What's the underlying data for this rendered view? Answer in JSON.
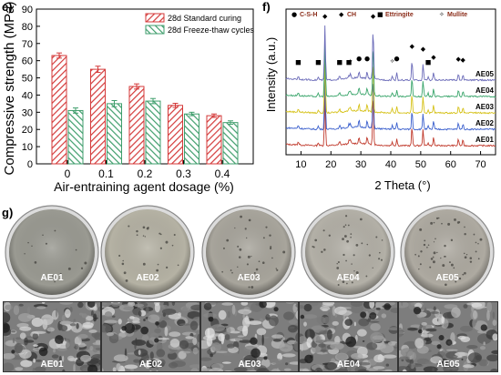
{
  "panels": {
    "e": "e)",
    "f": "f)",
    "g": "g)"
  },
  "colors": {
    "standard": "#d43a3a",
    "freeze": "#3f9e6c"
  },
  "chart_data": [
    {
      "type": "bar",
      "panel": "e",
      "categories": [
        "0",
        "0.1",
        "0.2",
        "0.3",
        "0.4"
      ],
      "series": [
        {
          "name": "28d Standard curing",
          "values": [
            63,
            55,
            45,
            34,
            28
          ],
          "errors": [
            1.5,
            1.8,
            1.5,
            1.2,
            1.0
          ]
        },
        {
          "name": "28d Freeze-thaw cycles",
          "values": [
            31,
            35,
            36.5,
            29,
            24
          ],
          "errors": [
            1.5,
            1.8,
            1.5,
            1.0,
            1.0
          ]
        }
      ],
      "xlabel": "Air-entraining agent dosage (%)",
      "ylabel": "Compressive strength (MPa)",
      "ylim": [
        0,
        90
      ],
      "yticks": [
        "0",
        "10",
        "20",
        "30",
        "40",
        "50",
        "60",
        "70",
        "80",
        "90"
      ],
      "legend": "top-right"
    },
    {
      "type": "line",
      "panel": "f",
      "xlabel": "2 Theta (°)",
      "ylabel": "Intensity (a.u.)",
      "xlim": [
        5,
        75
      ],
      "xticks": [
        "10",
        "20",
        "30",
        "40",
        "50",
        "60",
        "70"
      ],
      "series": [
        {
          "name": "AE01",
          "color": "#c0392b"
        },
        {
          "name": "AE02",
          "color": "#3a5fcd"
        },
        {
          "name": "AE03",
          "color": "#d6c21a"
        },
        {
          "name": "AE04",
          "color": "#3aa56b"
        },
        {
          "name": "AE05",
          "color": "#6a6ab8"
        }
      ],
      "peaks": [
        {
          "x": 18.0,
          "phase": "CH"
        },
        {
          "x": 34.1,
          "phase": "CH"
        },
        {
          "x": 47.1,
          "phase": "CH"
        },
        {
          "x": 50.8,
          "phase": "CH"
        },
        {
          "x": 54.3,
          "phase": "CH"
        },
        {
          "x": 62.6,
          "phase": "CH"
        },
        {
          "x": 64.1,
          "phase": "CH"
        },
        {
          "x": 29.4,
          "phase": "C-S-H"
        },
        {
          "x": 32.1,
          "phase": "C-S-H"
        },
        {
          "x": 42.0,
          "phase": "C-S-H"
        },
        {
          "x": 9.1,
          "phase": "Ettringite"
        },
        {
          "x": 15.8,
          "phase": "Ettringite"
        },
        {
          "x": 22.9,
          "phase": "Ettringite"
        },
        {
          "x": 26.0,
          "phase": "Ettringite"
        },
        {
          "x": 52.5,
          "phase": "Ettringite"
        },
        {
          "x": 26.5,
          "phase": "Mullite"
        },
        {
          "x": 40.5,
          "phase": "Mullite"
        }
      ],
      "legend_items": [
        {
          "symbol": "●",
          "name": "C-S-H"
        },
        {
          "symbol": "◆",
          "name": "CH"
        },
        {
          "symbol": "■",
          "name": "Ettringite"
        },
        {
          "symbol": "✧",
          "name": "Mullite"
        }
      ]
    }
  ],
  "photos": {
    "labels": [
      "AE01",
      "AE02",
      "AE03",
      "AE04",
      "AE05"
    ],
    "tones": [
      "#9a9a92",
      "#b5b2a4",
      "#a8a59c",
      "#b3b0a7",
      "#aeaaa1"
    ]
  },
  "sem": {
    "labels": [
      "AE01",
      "AE02",
      "AE03",
      "AE04",
      "AE05"
    ]
  }
}
